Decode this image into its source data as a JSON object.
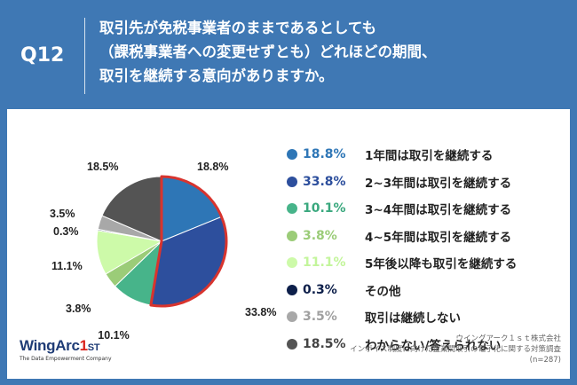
{
  "header": {
    "q_label": "Q12",
    "question_lines": [
      "取引先が免税事業者のままであるとしても",
      "（課税事業者への変更せずとも）どれほどの期間、",
      "取引を継続する意向がありますか。"
    ]
  },
  "chart_data": {
    "type": "pie",
    "slices": [
      {
        "label": "1年間は取引を継続する",
        "value": 18.8,
        "display": "18.8%",
        "color": "#2e76b6",
        "text_color": "#2e76b6"
      },
      {
        "label": "2~3年間は取引を継続する",
        "value": 33.8,
        "display": "33.8%",
        "color": "#2d4f9d",
        "text_color": "#2d4f9d"
      },
      {
        "label": "3~4年間は取引を継続する",
        "value": 10.1,
        "display": "10.1%",
        "color": "#47b48a",
        "text_color": "#3aa87e"
      },
      {
        "label": "4~5年間は取引を継続する",
        "value": 3.8,
        "display": "3.8%",
        "color": "#9bcc78",
        "text_color": "#9bcc78"
      },
      {
        "label": "5年後以降も取引を継続する",
        "value": 11.1,
        "display": "11.1%",
        "color": "#cdfaa9",
        "text_color": "#c3f59b"
      },
      {
        "label": "その他",
        "value": 0.3,
        "display": "0.3%",
        "color": "#0d1f4a",
        "text_color": "#0d1f4a"
      },
      {
        "label": "取引は継続しない",
        "value": 3.5,
        "display": "3.5%",
        "color": "#a8a8a8",
        "text_color": "#a0a0a0"
      },
      {
        "label": "わからない/答えられない",
        "value": 18.5,
        "display": "18.5%",
        "color": "#545454",
        "text_color": "#444444"
      }
    ],
    "highlight_color": "#d8342e"
  },
  "logo": {
    "brand_a": "WingArc",
    "brand_b": "1",
    "brand_c": "ST",
    "tagline": "The Data Empowerment Company"
  },
  "source": {
    "line1": "ウイングアーク１ｓｔ株式会社",
    "line2": "インボイス制度に向けた企業間取引の電子化に関する対策調査",
    "line3": "(n=287)"
  }
}
